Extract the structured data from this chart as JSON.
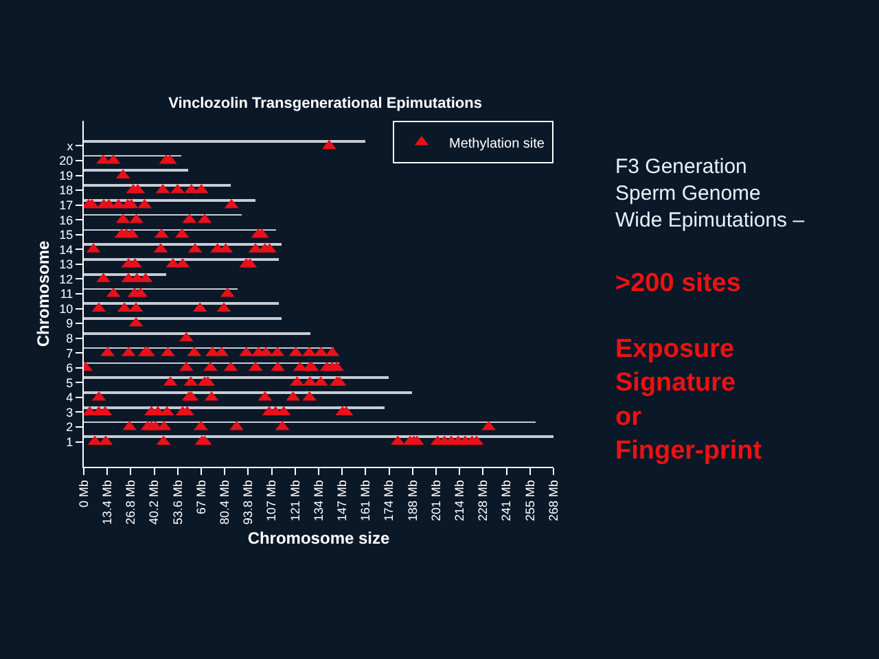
{
  "chart_data": {
    "type": "bar",
    "orientation": "horizontal",
    "title": "Vinclozolin Transgenerational Epimutations",
    "xlabel": "Chromosome size",
    "ylabel": "Chromosome",
    "categories": [
      "x",
      "20",
      "19",
      "18",
      "17",
      "16",
      "15",
      "14",
      "13",
      "12",
      "11",
      "10",
      "9",
      "8",
      "7",
      "6",
      "5",
      "4",
      "3",
      "2",
      "1"
    ],
    "series": [
      {
        "color": "#c8ccd4",
        "values": [
          161,
          55.6,
          59.6,
          83.9,
          98,
          90.4,
          110,
          112.6,
          111.3,
          47,
          87.5,
          111.3,
          113,
          129.3,
          143,
          146,
          174,
          187.5,
          171.9,
          258,
          268
        ]
      },
      {
        "type": "scatter",
        "name": "Methylation site",
        "color": "#e8101a",
        "x": [
          "x",
          "20",
          "20",
          "20",
          "20",
          "19",
          "18",
          "18",
          "18",
          "18",
          "18",
          "18",
          "17",
          "17",
          "17",
          "17",
          "17",
          "17",
          "17",
          "17",
          "17",
          "16",
          "16",
          "16",
          "16",
          "15",
          "15",
          "15",
          "15",
          "15",
          "15",
          "15",
          "14",
          "14",
          "14",
          "14",
          "14",
          "14",
          "14",
          "14",
          "13",
          "13",
          "13",
          "13",
          "13",
          "13",
          "12",
          "12",
          "12",
          "12",
          "11",
          "11",
          "11",
          "11",
          "10",
          "10",
          "10",
          "10",
          "10",
          "9",
          "8",
          "7",
          "7",
          "7",
          "7",
          "7",
          "7",
          "7",
          "7",
          "7",
          "7",
          "7",
          "7",
          "7",
          "7",
          "7",
          "7",
          "6",
          "6",
          "6",
          "6",
          "6",
          "6",
          "6",
          "6",
          "6",
          "6",
          "6",
          "6",
          "5",
          "5",
          "5",
          "5",
          "5",
          "5",
          "5",
          "5",
          "5",
          "4",
          "4",
          "4",
          "4",
          "4",
          "4",
          "4",
          "3",
          "3",
          "3",
          "3",
          "3",
          "3",
          "3",
          "3",
          "3",
          "3",
          "3",
          "3",
          "3",
          "2",
          "2",
          "2",
          "2",
          "2",
          "2",
          "2",
          "2",
          "2",
          "1",
          "1",
          "1",
          "1",
          "1",
          "1",
          "1",
          "1",
          "1",
          "1",
          "1",
          "1",
          "1",
          "1",
          "1",
          "1"
        ],
        "values": [
          140,
          11.2,
          16.9,
          47,
          49.1,
          22.4,
          28.2,
          30.8,
          45.1,
          53.5,
          61.4,
          67.1,
          2.8,
          4.7,
          11.4,
          14.3,
          19.8,
          25.1,
          27.1,
          34.7,
          84.3,
          22.4,
          30,
          60.3,
          69,
          21.6,
          24.3,
          27.4,
          44.4,
          56.1,
          99.5,
          101.6,
          5.5,
          43.9,
          63.5,
          76.3,
          81,
          98,
          103.4,
          106,
          25.5,
          29.2,
          50.9,
          56.4,
          92.7,
          94.8,
          11.2,
          25.5,
          30.3,
          35.3,
          16.9,
          29,
          32.4,
          82,
          8.6,
          23.2,
          29.8,
          66.3,
          79.9,
          29.8,
          58.5,
          13.6,
          25.6,
          35,
          36.6,
          48,
          63,
          73.4,
          78.6,
          92.7,
          99.7,
          103.9,
          110.5,
          121,
          128.7,
          135.3,
          141.8,
          1,
          58.5,
          72.3,
          83.9,
          98,
          110.7,
          123.5,
          129,
          130.1,
          138.7,
          141.8,
          144.4,
          49.4,
          61.1,
          69,
          70.8,
          121.7,
          129.1,
          135.3,
          144.4,
          145.8,
          8.6,
          60,
          61.4,
          72.9,
          103.4,
          119.4,
          128.8,
          3.4,
          8.6,
          12.2,
          38.6,
          42.3,
          47.5,
          56.4,
          59,
          105.8,
          109.4,
          114.1,
          147.6,
          149.7,
          26.1,
          36.5,
          38.6,
          40.8,
          45.9,
          66.8,
          87.2,
          113.3,
          231,
          6.3,
          12.5,
          45.5,
          67.4,
          69,
          179.2,
          186.2,
          188.3,
          190.1,
          201.9,
          205.8,
          209.7,
          213.6,
          217.6,
          221.5,
          224.1
        ]
      }
    ],
    "xlim": [
      0,
      268
    ],
    "xticks": [
      {
        "value": 0,
        "label": "0 Mb"
      },
      {
        "value": 13.4,
        "label": "13.4 Mb"
      },
      {
        "value": 26.8,
        "label": "26.8 Mb"
      },
      {
        "value": 40.2,
        "label": "40.2 Mb"
      },
      {
        "value": 53.6,
        "label": "53.6 Mb"
      },
      {
        "value": 67,
        "label": "67 Mb"
      },
      {
        "value": 80.4,
        "label": "80.4 Mb"
      },
      {
        "value": 93.8,
        "label": "93.8 Mb"
      },
      {
        "value": 107.2,
        "label": "107 Mb"
      },
      {
        "value": 120.6,
        "label": "121 Mb"
      },
      {
        "value": 134,
        "label": "134 Mb"
      },
      {
        "value": 147.4,
        "label": "147 Mb"
      },
      {
        "value": 160.8,
        "label": "161 Mb"
      },
      {
        "value": 174.2,
        "label": "174 Mb"
      },
      {
        "value": 187.6,
        "label": "188 Mb"
      },
      {
        "value": 201,
        "label": "201 Mb"
      },
      {
        "value": 214.4,
        "label": "214 Mb"
      },
      {
        "value": 227.8,
        "label": "228 Mb"
      },
      {
        "value": 241.2,
        "label": "241 Mb"
      },
      {
        "value": 254.6,
        "label": "255 Mb"
      },
      {
        "value": 268,
        "label": "268 Mb"
      }
    ],
    "legend": "top right",
    "marker": "triangle",
    "grid": false,
    "annotations": [
      "F3 Generation\nSperm Genome\nWide Epimutations –",
      ">200 sites",
      "Exposure\nSignature\nor\nFinger-print"
    ]
  }
}
